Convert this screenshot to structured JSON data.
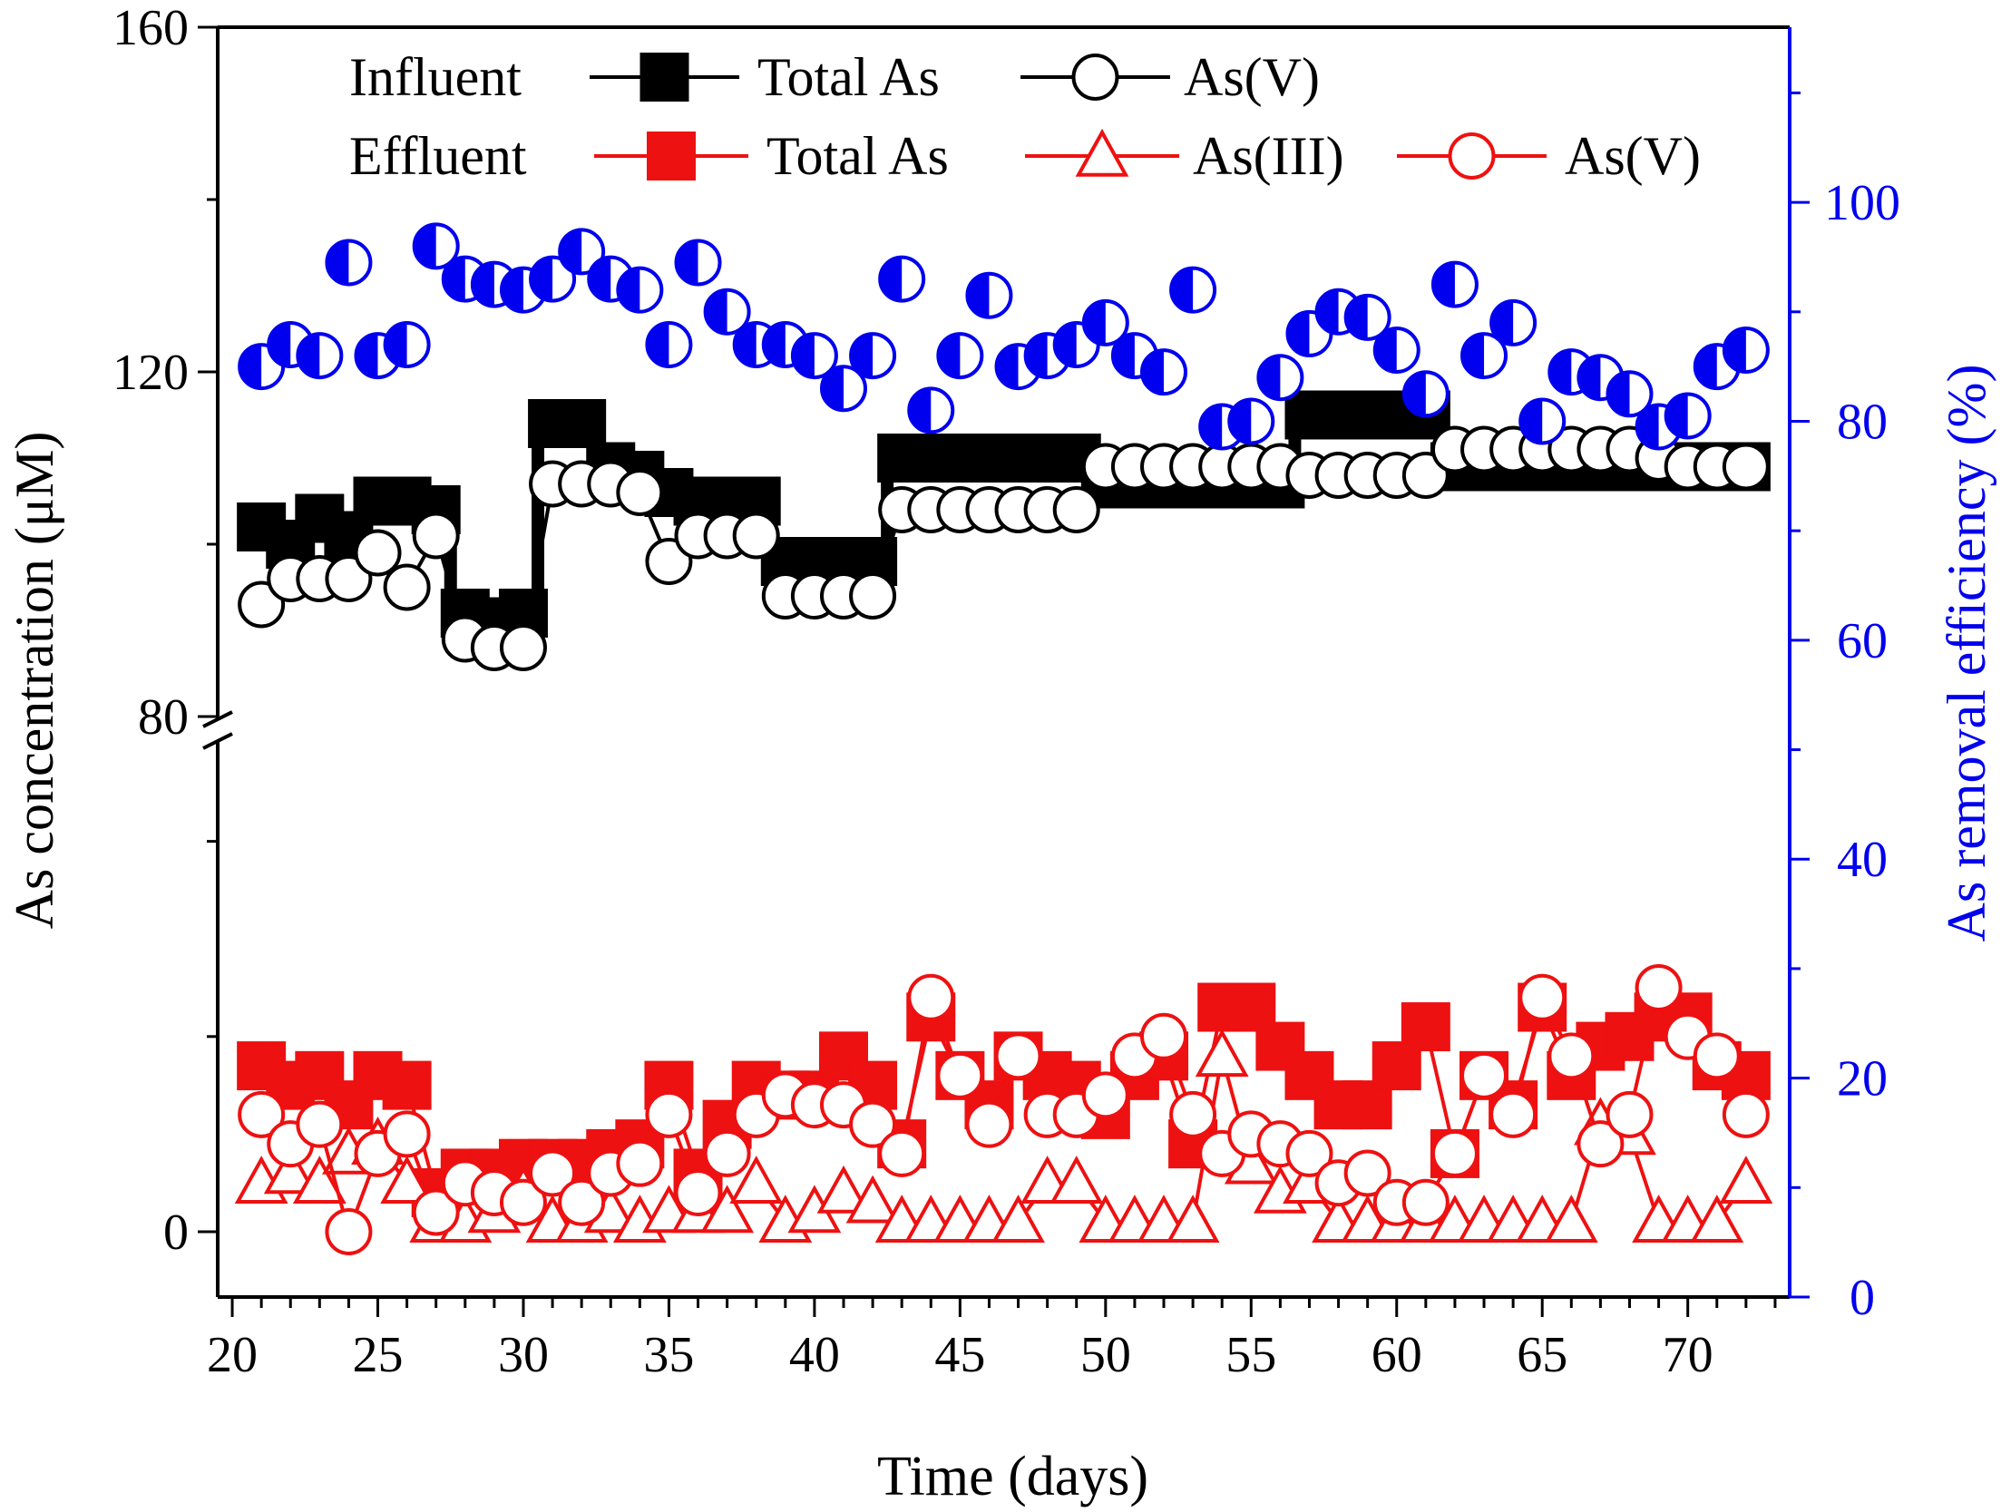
{
  "chart_data": {
    "type": "line+scatter",
    "xlabel": "Time (days)",
    "ylabel_left": "As concentration (μM)",
    "ylabel_right": "As removal efficiency (%)",
    "xlim": [
      19.5,
      73.5
    ],
    "x_ticks": [
      20,
      25,
      30,
      35,
      40,
      45,
      50,
      55,
      60,
      65,
      70
    ],
    "y_left_broken_axis": {
      "lower_range": [
        0,
        50
      ],
      "upper_range": [
        80,
        160
      ],
      "lower_ticks": [
        0
      ],
      "upper_ticks": [
        80,
        120,
        160
      ]
    },
    "ylim_right": [
      0,
      116
    ],
    "y_right_ticks": [
      0,
      20,
      40,
      60,
      80,
      100
    ],
    "colors": {
      "influent": "#000000",
      "effluent": "#ee1111",
      "removal": "#0000ee"
    },
    "legend": {
      "row1_group": "Influent",
      "row2_group": "Effluent",
      "entries": [
        {
          "row": 1,
          "label": "Total As",
          "marker": "square",
          "color": "#000000"
        },
        {
          "row": 1,
          "label": "As(V)",
          "marker": "circle",
          "color": "#000000"
        },
        {
          "row": 2,
          "label": "Total As",
          "marker": "square",
          "color": "#ee1111"
        },
        {
          "row": 2,
          "label": "As(III)",
          "marker": "triangle",
          "color": "#ee1111"
        },
        {
          "row": 2,
          "label": "As(V)",
          "marker": "circle",
          "color": "#ee1111"
        }
      ]
    },
    "series": [
      {
        "name": "Influent Total As",
        "axis": "left",
        "color": "#000000",
        "marker": "square",
        "step": true,
        "x": [
          21,
          22,
          23,
          24,
          25,
          26,
          27,
          28,
          29,
          30,
          31,
          32,
          33,
          34,
          35,
          36,
          37,
          38,
          39,
          40,
          41,
          42,
          43,
          44,
          45,
          46,
          47,
          48,
          49,
          50,
          51,
          52,
          53,
          54,
          55,
          56,
          57,
          58,
          59,
          60,
          61,
          62,
          63,
          64,
          65,
          66,
          67,
          68,
          69,
          70,
          71,
          72
        ],
        "y": [
          102,
          100,
          103,
          101,
          105,
          105,
          104,
          92,
          91,
          92,
          114,
          114,
          109,
          108,
          106,
          105,
          105,
          105,
          98,
          98,
          98,
          98,
          110,
          110,
          110,
          110,
          110,
          110,
          110,
          107,
          107,
          107,
          107,
          107,
          107,
          107,
          115,
          115,
          115,
          115,
          115,
          109,
          109,
          109,
          109,
          109,
          109,
          109,
          109,
          109,
          109,
          109
        ]
      },
      {
        "name": "Influent As(V)",
        "axis": "left",
        "color": "#000000",
        "marker": "circle",
        "x": [
          21,
          22,
          23,
          24,
          25,
          26,
          27,
          28,
          29,
          30,
          31,
          32,
          33,
          34,
          35,
          36,
          37,
          38,
          39,
          40,
          41,
          42,
          43,
          44,
          45,
          46,
          47,
          48,
          49,
          50,
          51,
          52,
          53,
          54,
          55,
          56,
          57,
          58,
          59,
          60,
          61,
          62,
          63,
          64,
          65,
          66,
          67,
          68,
          69,
          70,
          71,
          72
        ],
        "y": [
          93,
          96,
          96,
          96,
          99,
          95,
          101,
          89,
          88,
          88,
          107,
          107,
          107,
          106,
          98,
          101,
          101,
          101,
          94,
          94,
          94,
          94,
          104,
          104,
          104,
          104,
          104,
          104,
          104,
          109,
          109,
          109,
          109,
          109,
          109,
          109,
          108,
          108,
          108,
          108,
          108,
          111,
          111,
          111,
          111,
          111,
          111,
          111,
          110,
          109,
          109,
          109
        ]
      },
      {
        "name": "Effluent Total As",
        "axis": "left",
        "color": "#ee1111",
        "marker": "square",
        "x": [
          21,
          22,
          23,
          24,
          25,
          26,
          27,
          28,
          29,
          30,
          31,
          32,
          33,
          34,
          35,
          36,
          37,
          38,
          39,
          40,
          41,
          42,
          43,
          44,
          45,
          46,
          47,
          48,
          49,
          50,
          51,
          52,
          53,
          54,
          55,
          56,
          57,
          58,
          59,
          60,
          61,
          62,
          63,
          64,
          65,
          66,
          67,
          68,
          69,
          70,
          71,
          72
        ],
        "y": [
          17,
          15,
          16,
          13,
          16,
          15,
          4,
          6,
          6,
          7,
          7,
          7,
          8,
          9,
          15,
          6,
          11,
          15,
          14,
          14,
          18,
          15,
          9,
          22,
          16,
          13,
          18,
          16,
          15,
          12,
          16,
          18,
          9,
          23,
          23,
          19,
          16,
          13,
          13,
          17,
          21,
          8,
          16,
          13,
          23,
          16,
          19,
          20,
          22,
          22,
          17,
          16
        ]
      },
      {
        "name": "Effluent As(III)",
        "axis": "left",
        "color": "#ee1111",
        "marker": "triangle",
        "x": [
          21,
          22,
          23,
          24,
          25,
          26,
          27,
          28,
          29,
          30,
          31,
          32,
          33,
          34,
          35,
          36,
          37,
          38,
          39,
          40,
          41,
          42,
          43,
          44,
          45,
          46,
          47,
          48,
          49,
          50,
          51,
          52,
          53,
          54,
          55,
          56,
          57,
          58,
          59,
          60,
          61,
          62,
          63,
          64,
          65,
          66,
          67,
          68,
          69,
          70,
          71,
          72
        ],
        "y": [
          5,
          6,
          5,
          8,
          9,
          5,
          1,
          1,
          2,
          4,
          1,
          1,
          2,
          1,
          2,
          2,
          2,
          5,
          1,
          2,
          4,
          3,
          1,
          1,
          1,
          1,
          1,
          5,
          5,
          1,
          1,
          1,
          1,
          18,
          7,
          4,
          5,
          1,
          1,
          1,
          1,
          1,
          1,
          1,
          1,
          1,
          11,
          10,
          1,
          1,
          1,
          5
        ]
      },
      {
        "name": "Effluent As(V)",
        "axis": "left",
        "color": "#ee1111",
        "marker": "circle",
        "x": [
          21,
          22,
          23,
          24,
          25,
          26,
          27,
          28,
          29,
          30,
          31,
          32,
          33,
          34,
          35,
          36,
          37,
          38,
          39,
          40,
          41,
          42,
          43,
          44,
          45,
          46,
          47,
          48,
          49,
          50,
          51,
          52,
          53,
          54,
          55,
          56,
          57,
          58,
          59,
          60,
          61,
          62,
          63,
          64,
          65,
          66,
          67,
          68,
          69,
          70,
          71,
          72
        ],
        "y": [
          12,
          9,
          11,
          0,
          8,
          10,
          2,
          5,
          4,
          3,
          6,
          3,
          6,
          7,
          12,
          4,
          8,
          12,
          14,
          13,
          13,
          11,
          8,
          24,
          16,
          11,
          18,
          12,
          12,
          14,
          18,
          20,
          12,
          8,
          10,
          9,
          8,
          5,
          6,
          3,
          3,
          8,
          16,
          12,
          24,
          18,
          9,
          12,
          25,
          20,
          18,
          12
        ]
      },
      {
        "name": "As removal efficiency",
        "axis": "right",
        "color": "#0000ee",
        "marker": "half-circle",
        "x": [
          21,
          22,
          23,
          24,
          25,
          26,
          27,
          28,
          29,
          30,
          31,
          32,
          33,
          34,
          35,
          36,
          37,
          38,
          39,
          40,
          41,
          42,
          43,
          44,
          45,
          46,
          47,
          48,
          49,
          50,
          51,
          52,
          53,
          54,
          55,
          56,
          57,
          58,
          59,
          60,
          61,
          62,
          63,
          64,
          65,
          66,
          67,
          68,
          69,
          70,
          71,
          72
        ],
        "y": [
          85,
          87,
          86,
          94.5,
          86,
          87,
          96,
          93,
          92.5,
          92,
          93,
          95.5,
          93,
          92,
          87,
          94.5,
          90,
          87,
          87,
          86,
          83,
          86,
          93,
          81,
          86,
          91.5,
          85,
          86,
          87,
          89,
          86,
          84.5,
          92,
          79.5,
          80,
          84,
          88,
          90,
          89.5,
          86.5,
          82.5,
          92.5,
          86,
          89,
          80,
          84.5,
          84,
          82.5,
          79.5,
          80.5,
          85,
          86.5
        ]
      }
    ]
  }
}
